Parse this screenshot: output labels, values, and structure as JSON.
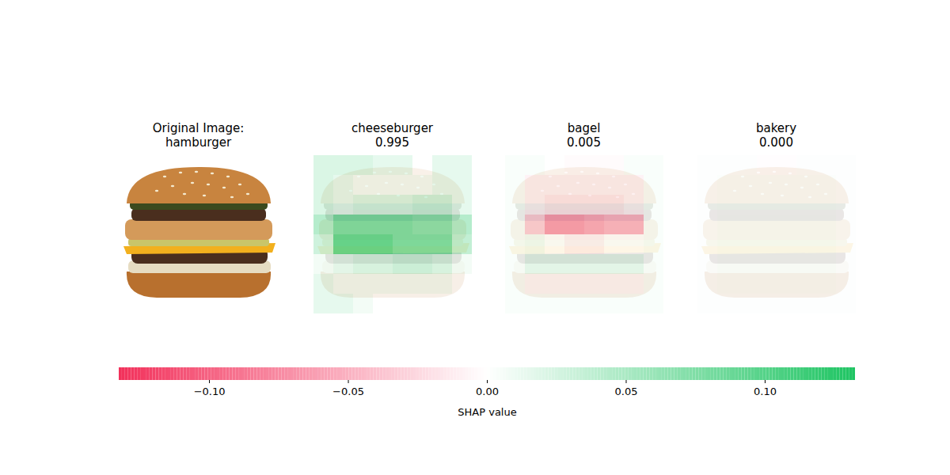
{
  "chart_data": {
    "type": "image_shap",
    "panels": [
      {
        "title": "Original Image:",
        "subtitle": "hamburger"
      },
      {
        "title": "cheeseburger",
        "value": 0.995,
        "cells": [
          [
            0.03,
            0.03,
            0.03,
            0.02,
            0.02,
            0.0,
            0.02,
            0.02
          ],
          [
            0.03,
            0.02,
            0.01,
            0.01,
            0.01,
            0.01,
            0.02,
            0.02
          ],
          [
            0.03,
            0.02,
            0.03,
            0.03,
            0.03,
            0.04,
            0.04,
            0.02
          ],
          [
            0.06,
            0.1,
            0.1,
            0.1,
            0.1,
            0.09,
            0.09,
            0.06
          ],
          [
            0.04,
            0.12,
            0.12,
            0.12,
            0.1,
            0.1,
            0.1,
            0.05
          ],
          [
            0.01,
            0.02,
            0.03,
            0.03,
            0.04,
            0.04,
            0.03,
            0.01
          ],
          [
            0.02,
            0.01,
            0.01,
            0.01,
            0.01,
            0.01,
            0.01,
            0.0
          ],
          [
            0.02,
            0.02,
            0.01,
            0.0,
            0.0,
            0.0,
            0.0,
            0.0
          ]
        ]
      },
      {
        "title": "bagel",
        "value": 0.005,
        "cells": [
          [
            0.005,
            0.005,
            0.0,
            -0.003,
            -0.003,
            -0.003,
            0.005,
            0.005
          ],
          [
            0.005,
            -0.01,
            -0.01,
            -0.01,
            -0.01,
            -0.01,
            -0.01,
            0.005
          ],
          [
            0.005,
            -0.01,
            -0.02,
            -0.02,
            -0.02,
            -0.02,
            -0.01,
            0.005
          ],
          [
            0.005,
            -0.04,
            -0.08,
            -0.08,
            -0.07,
            -0.06,
            -0.06,
            0.005
          ],
          [
            0.005,
            0.01,
            0.0,
            -0.01,
            -0.01,
            0.0,
            0.0,
            0.005
          ],
          [
            0.005,
            0.02,
            0.02,
            0.02,
            0.02,
            0.02,
            0.02,
            0.005
          ],
          [
            0.005,
            -0.005,
            -0.005,
            -0.005,
            -0.005,
            -0.005,
            -0.005,
            0.005
          ],
          [
            0.005,
            0.005,
            0.005,
            0.005,
            0.005,
            0.005,
            0.005,
            0.005
          ]
        ]
      },
      {
        "title": "bakery",
        "value": 0,
        "cells": [
          [
            0.002,
            0.002,
            0.002,
            -0.002,
            -0.002,
            0.002,
            0.002,
            0.002
          ],
          [
            0.002,
            0.003,
            0.003,
            0.003,
            0.003,
            0.003,
            0.003,
            0.002
          ],
          [
            0.002,
            0.003,
            0.003,
            0.003,
            0.003,
            0.003,
            0.003,
            0.002
          ],
          [
            0.002,
            0.004,
            0.004,
            0.004,
            0.004,
            0.004,
            0.004,
            0.002
          ],
          [
            0.002,
            0.004,
            0.004,
            0.004,
            0.004,
            0.004,
            0.004,
            0.002
          ],
          [
            0.002,
            0.004,
            0.004,
            0.004,
            0.004,
            0.004,
            0.004,
            0.002
          ],
          [
            0.002,
            0.003,
            0.003,
            0.003,
            0.003,
            0.003,
            0.003,
            0.002
          ],
          [
            0.002,
            0.002,
            0.002,
            0.002,
            0.002,
            0.002,
            0.002,
            0.002
          ]
        ]
      }
    ],
    "colorbar": {
      "range": [
        -0.1325,
        0.1325
      ],
      "ticks": [
        {
          "value": -0.1,
          "label": "−0.10"
        },
        {
          "value": -0.05,
          "label": "−0.05"
        },
        {
          "value": 0,
          "label": "0.00"
        },
        {
          "value": 0.05,
          "label": "0.05"
        },
        {
          "value": 0.1,
          "label": "0.10"
        }
      ],
      "label": "SHAP value"
    }
  }
}
